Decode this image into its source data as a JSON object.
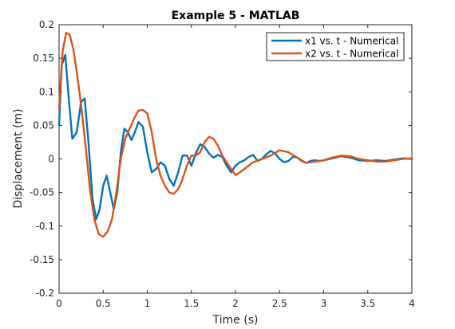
{
  "chart_data": {
    "type": "line",
    "title": "Example 5 - MATLAB",
    "xlabel": "Time (s)",
    "ylabel": "Displacement (m)",
    "xlim": [
      0,
      4
    ],
    "ylim": [
      -0.2,
      0.2
    ],
    "xticks": [
      0,
      0.5,
      1,
      1.5,
      2,
      2.5,
      3,
      3.5,
      4
    ],
    "xtick_labels": [
      "0",
      "0.5",
      "1",
      "1.5",
      "2",
      "2.5",
      "3",
      "3.5",
      "4"
    ],
    "yticks": [
      -0.2,
      -0.15,
      -0.1,
      -0.05,
      0,
      0.05,
      0.1,
      0.15,
      0.2
    ],
    "ytick_labels": [
      "-0.2",
      "-0.15",
      "-0.1",
      "-0.05",
      "0",
      "0.05",
      "0.1",
      "0.15",
      "0.2"
    ],
    "grid": false,
    "legend_position": "top-right",
    "series": [
      {
        "name": "x1 vs. t - Numerical",
        "color": "#0072BD",
        "x": [
          0,
          0.03,
          0.07,
          0.11,
          0.15,
          0.2,
          0.25,
          0.29,
          0.33,
          0.38,
          0.42,
          0.46,
          0.5,
          0.54,
          0.58,
          0.62,
          0.66,
          0.7,
          0.74,
          0.78,
          0.82,
          0.86,
          0.9,
          0.95,
          1.0,
          1.05,
          1.1,
          1.15,
          1.2,
          1.25,
          1.3,
          1.35,
          1.4,
          1.45,
          1.5,
          1.55,
          1.6,
          1.65,
          1.7,
          1.75,
          1.8,
          1.85,
          1.9,
          1.95,
          2.0,
          2.05,
          2.1,
          2.15,
          2.2,
          2.25,
          2.3,
          2.35,
          2.4,
          2.45,
          2.5,
          2.55,
          2.6,
          2.65,
          2.7,
          2.75,
          2.8,
          2.85,
          2.9,
          2.95,
          3.0,
          3.1,
          3.2,
          3.3,
          3.4,
          3.5,
          3.6,
          3.7,
          3.8,
          3.9,
          4.0
        ],
        "y": [
          0.05,
          0.14,
          0.155,
          0.09,
          0.03,
          0.04,
          0.085,
          0.09,
          0.03,
          -0.06,
          -0.09,
          -0.075,
          -0.04,
          -0.025,
          -0.05,
          -0.075,
          -0.05,
          0.01,
          0.045,
          0.04,
          0.028,
          0.04,
          0.055,
          0.048,
          0.01,
          -0.02,
          -0.015,
          -0.005,
          -0.01,
          -0.03,
          -0.04,
          -0.02,
          0.005,
          0.005,
          -0.01,
          0.008,
          0.022,
          0.018,
          0.008,
          0.002,
          0.006,
          0.003,
          -0.01,
          -0.02,
          -0.01,
          -0.005,
          -0.002,
          0.003,
          0.006,
          -0.003,
          0.0,
          0.007,
          0.012,
          0.008,
          0.0,
          -0.005,
          -0.003,
          0.003,
          0.002,
          -0.003,
          -0.006,
          -0.003,
          -0.002,
          -0.003,
          -0.002,
          0.001,
          0.004,
          0.002,
          -0.002,
          -0.003,
          -0.002,
          -0.003,
          -0.001,
          0.001,
          0.0
        ]
      },
      {
        "name": "x2 vs. t - Numerical",
        "color": "#D95319",
        "x": [
          0,
          0.04,
          0.08,
          0.12,
          0.16,
          0.2,
          0.25,
          0.3,
          0.35,
          0.4,
          0.45,
          0.5,
          0.55,
          0.6,
          0.65,
          0.7,
          0.75,
          0.8,
          0.85,
          0.9,
          0.95,
          1.0,
          1.05,
          1.1,
          1.15,
          1.2,
          1.25,
          1.3,
          1.35,
          1.4,
          1.45,
          1.5,
          1.55,
          1.6,
          1.65,
          1.7,
          1.75,
          1.8,
          1.85,
          1.9,
          1.95,
          2.0,
          2.05,
          2.1,
          2.2,
          2.3,
          2.4,
          2.5,
          2.6,
          2.7,
          2.8,
          2.9,
          3.0,
          3.1,
          3.2,
          3.3,
          3.4,
          3.5,
          3.6,
          3.7,
          3.8,
          3.9,
          4.0
        ],
        "y": [
          0.075,
          0.16,
          0.188,
          0.185,
          0.165,
          0.13,
          0.08,
          0.02,
          -0.045,
          -0.09,
          -0.112,
          -0.116,
          -0.108,
          -0.09,
          -0.05,
          0.0,
          0.03,
          0.045,
          0.06,
          0.072,
          0.073,
          0.068,
          0.04,
          0.0,
          -0.025,
          -0.04,
          -0.05,
          -0.052,
          -0.045,
          -0.03,
          -0.01,
          0.005,
          0.005,
          0.01,
          0.025,
          0.033,
          0.03,
          0.02,
          0.005,
          -0.005,
          -0.015,
          -0.024,
          -0.02,
          -0.015,
          -0.005,
          0.0,
          0.005,
          0.013,
          0.01,
          0.002,
          -0.006,
          -0.004,
          -0.002,
          0.002,
          0.005,
          0.004,
          0.0,
          -0.002,
          -0.004,
          -0.004,
          -0.002,
          0.0,
          0.001
        ]
      }
    ]
  }
}
